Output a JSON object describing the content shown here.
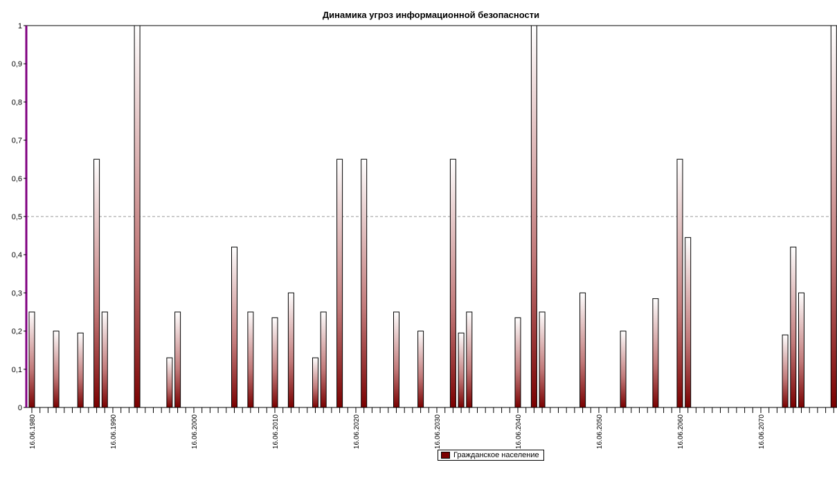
{
  "chart_data": {
    "type": "bar",
    "title": "Динамика угроз информационной безопасности",
    "xlabel": "",
    "ylabel": "",
    "ylim": [
      0,
      1
    ],
    "y_ticks": [
      "0",
      "0,1",
      "0,2",
      "0,3",
      "0,4",
      "0,5",
      "0,6",
      "0,7",
      "0,8",
      "0,9",
      "1"
    ],
    "reference_line": 0.5,
    "x_tick_labels": [
      "16.06.1980",
      "16.06.1990",
      "16.06.2000",
      "16.06.2010",
      "16.06.2020",
      "16.06.2030",
      "16.06.2040",
      "16.06.2050",
      "16.06.2060",
      "16.06.2070"
    ],
    "x_range": [
      1980,
      2079
    ],
    "years": [
      1980,
      1983,
      1986,
      1988,
      1989,
      1993,
      1997,
      1998,
      2005,
      2007,
      2010,
      2012,
      2015,
      2016,
      2018,
      2021,
      2025,
      2028,
      2032,
      2033,
      2034,
      2040,
      2042,
      2043,
      2048,
      2053,
      2057,
      2060,
      2061,
      2073,
      2074,
      2075,
      2079
    ],
    "series": [
      {
        "name": "Гражданское население",
        "values": [
          0.25,
          0.2,
          0.195,
          0.65,
          0.25,
          1.0,
          0.13,
          0.25,
          0.42,
          0.25,
          0.235,
          0.3,
          0.13,
          0.25,
          0.65,
          0.65,
          0.25,
          0.2,
          0.65,
          0.195,
          0.25,
          0.235,
          1.0,
          0.25,
          0.3,
          0.2,
          0.285,
          0.65,
          0.445,
          0.19,
          0.42,
          0.3,
          1.0
        ]
      }
    ],
    "legend_position": "bottom",
    "grid": false,
    "colors": {
      "bar_base": "#7a0000",
      "bar_top": "#ffffff",
      "left_axis": "#800080",
      "reference_line": "#999999"
    }
  }
}
